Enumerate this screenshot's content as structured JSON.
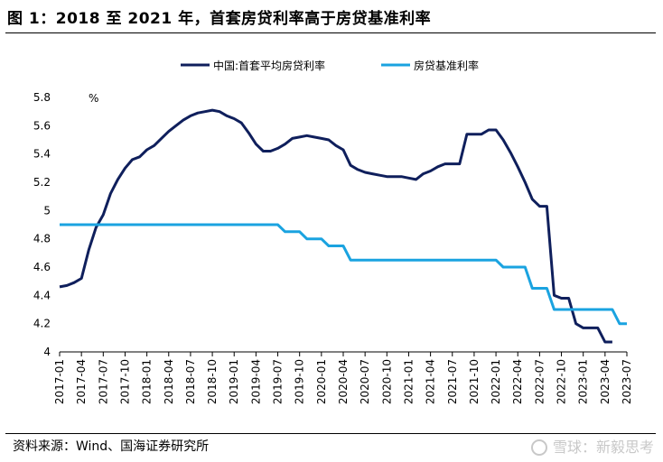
{
  "title": "图 1：2018 至 2021 年，首套房贷利率高于房贷基准利率",
  "source": "资料来源：Wind、国海证券研究所",
  "watermark": "雪球：新毅思考",
  "chart_data": {
    "type": "line",
    "ylabel": "%",
    "ylim": [
      4,
      5.8
    ],
    "yticks": [
      "4",
      "4.2",
      "4.4",
      "4.6",
      "4.8",
      "5",
      "5.2",
      "5.4",
      "5.6",
      "5.8"
    ],
    "x_start": "2017-01",
    "x_end": "2023-07",
    "xticks": [
      "2017-01",
      "2017-04",
      "2017-07",
      "2017-10",
      "2018-01",
      "2018-04",
      "2018-07",
      "2018-10",
      "2019-01",
      "2019-04",
      "2019-07",
      "2019-10",
      "2020-01",
      "2020-04",
      "2020-07",
      "2020-10",
      "2021-01",
      "2021-04",
      "2021-07",
      "2021-10",
      "2022-01",
      "2022-04",
      "2022-07",
      "2022-10",
      "2023-01",
      "2023-04",
      "2023-07"
    ],
    "legend_position": "top",
    "series": [
      {
        "name": "中国:首套平均房贷利率",
        "color": "#0f1f5c",
        "x": [
          "2017-01",
          "2017-02",
          "2017-03",
          "2017-04",
          "2017-05",
          "2017-06",
          "2017-07",
          "2017-08",
          "2017-09",
          "2017-10",
          "2017-11",
          "2017-12",
          "2018-01",
          "2018-02",
          "2018-03",
          "2018-04",
          "2018-05",
          "2018-06",
          "2018-07",
          "2018-08",
          "2018-09",
          "2018-10",
          "2018-11",
          "2018-12",
          "2019-01",
          "2019-02",
          "2019-03",
          "2019-04",
          "2019-05",
          "2019-06",
          "2019-07",
          "2019-08",
          "2019-09",
          "2019-10",
          "2019-11",
          "2019-12",
          "2020-01",
          "2020-02",
          "2020-03",
          "2020-04",
          "2020-05",
          "2020-06",
          "2020-07",
          "2020-08",
          "2020-09",
          "2020-10",
          "2020-11",
          "2020-12",
          "2021-01",
          "2021-02",
          "2021-03",
          "2021-04",
          "2021-05",
          "2021-06",
          "2021-07",
          "2021-08",
          "2021-09",
          "2021-10",
          "2021-11",
          "2021-12",
          "2022-01",
          "2022-02",
          "2022-03",
          "2022-04",
          "2022-05",
          "2022-06",
          "2022-07",
          "2022-08",
          "2022-09",
          "2022-10",
          "2022-11",
          "2022-12",
          "2023-01",
          "2023-02",
          "2023-03",
          "2023-04",
          "2023-05"
        ],
        "values": [
          4.46,
          4.47,
          4.49,
          4.52,
          4.72,
          4.88,
          4.97,
          5.12,
          5.22,
          5.3,
          5.36,
          5.38,
          5.43,
          5.46,
          5.51,
          5.56,
          5.6,
          5.64,
          5.67,
          5.69,
          5.7,
          5.71,
          5.7,
          5.67,
          5.65,
          5.62,
          5.55,
          5.47,
          5.42,
          5.42,
          5.44,
          5.47,
          5.51,
          5.52,
          5.53,
          5.52,
          5.51,
          5.5,
          5.46,
          5.43,
          5.32,
          5.29,
          5.27,
          5.26,
          5.25,
          5.24,
          5.24,
          5.24,
          5.23,
          5.22,
          5.26,
          5.28,
          5.31,
          5.33,
          5.33,
          5.33,
          5.54,
          5.54,
          5.54,
          5.57,
          5.57,
          5.5,
          5.41,
          5.31,
          5.2,
          5.08,
          5.03,
          5.03,
          4.4,
          4.38,
          4.38,
          4.2,
          4.17,
          4.17,
          4.17,
          4.07,
          4.07
        ]
      },
      {
        "name": "房贷基准利率",
        "color": "#1aa3e0",
        "x": [
          "2017-01",
          "2019-07",
          "2019-08",
          "2019-09",
          "2019-10",
          "2019-11",
          "2019-12",
          "2020-01",
          "2020-02",
          "2020-03",
          "2020-04",
          "2020-05",
          "2021-12",
          "2022-01",
          "2022-02",
          "2022-03",
          "2022-04",
          "2022-05",
          "2022-06",
          "2022-07",
          "2022-08",
          "2022-09",
          "2022-10",
          "2023-05",
          "2023-06",
          "2023-07"
        ],
        "values": [
          4.9,
          4.9,
          4.85,
          4.85,
          4.85,
          4.8,
          4.8,
          4.8,
          4.75,
          4.75,
          4.75,
          4.65,
          4.65,
          4.65,
          4.6,
          4.6,
          4.6,
          4.6,
          4.45,
          4.45,
          4.45,
          4.3,
          4.3,
          4.3,
          4.2,
          4.2
        ]
      }
    ]
  }
}
